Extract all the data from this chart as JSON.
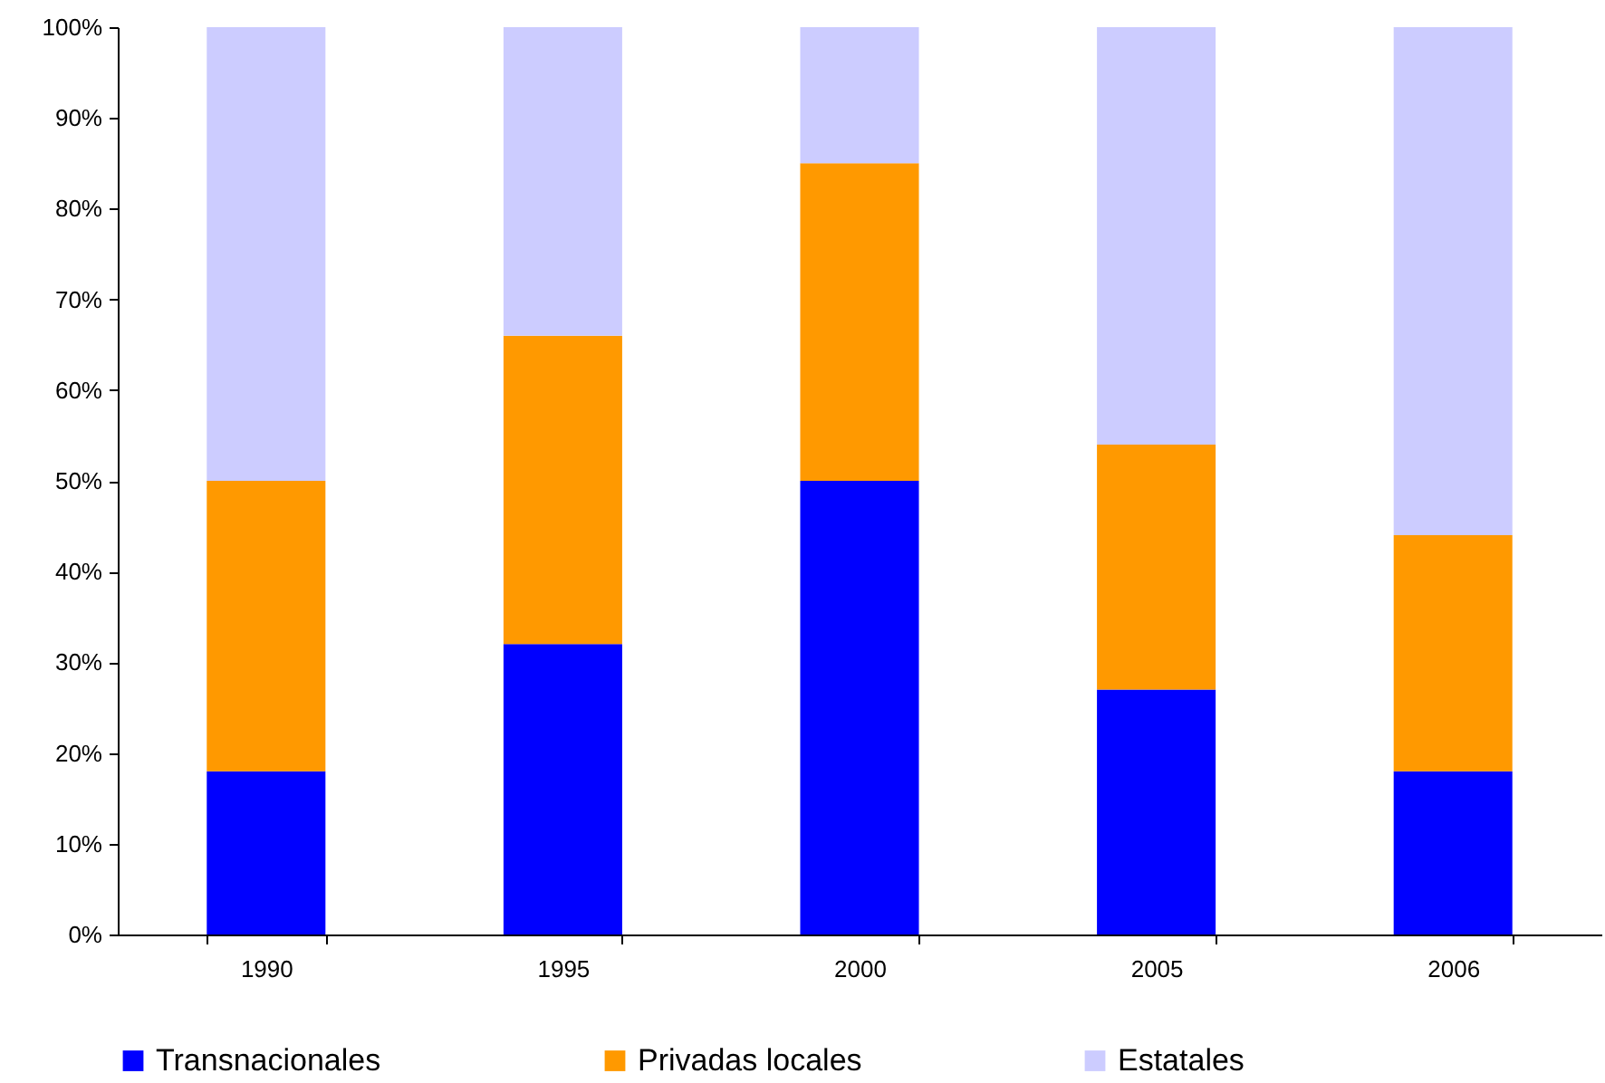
{
  "chart_data": {
    "type": "bar",
    "stacked": true,
    "categories": [
      "1990",
      "1995",
      "2000",
      "2005",
      "2006"
    ],
    "series": [
      {
        "name": "Transnacionales",
        "color": "#0000ff",
        "values": [
          18,
          32,
          50,
          27,
          18
        ]
      },
      {
        "name": "Privadas locales",
        "color": "#ff9900",
        "values": [
          32,
          34,
          35,
          27,
          26
        ]
      },
      {
        "name": "Estatales",
        "color": "#ccccff",
        "values": [
          50,
          34,
          15,
          46,
          56
        ]
      }
    ],
    "ylim": [
      0,
      100
    ],
    "yticks": [
      {
        "value": 0,
        "label": "0%"
      },
      {
        "value": 10,
        "label": "10%"
      },
      {
        "value": 20,
        "label": "20%"
      },
      {
        "value": 30,
        "label": "30%"
      },
      {
        "value": 40,
        "label": "40%"
      },
      {
        "value": 50,
        "label": "50%"
      },
      {
        "value": 60,
        "label": "60%"
      },
      {
        "value": 70,
        "label": "70%"
      },
      {
        "value": 80,
        "label": "80%"
      },
      {
        "value": 90,
        "label": "90%"
      },
      {
        "value": 100,
        "label": "100%"
      }
    ],
    "grid": false,
    "legend": "bottom"
  }
}
